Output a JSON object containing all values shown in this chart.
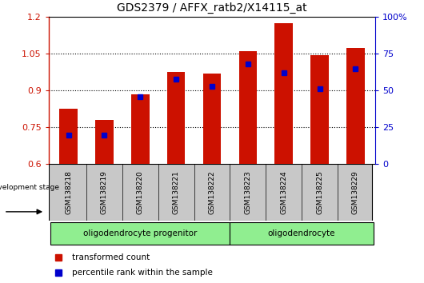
{
  "title": "GDS2379 / AFFX_ratb2/X14115_at",
  "samples": [
    "GSM138218",
    "GSM138219",
    "GSM138220",
    "GSM138221",
    "GSM138222",
    "GSM138223",
    "GSM138224",
    "GSM138225",
    "GSM138229"
  ],
  "transformed_count": [
    0.825,
    0.78,
    0.885,
    0.975,
    0.97,
    1.06,
    1.175,
    1.045,
    1.075
  ],
  "percentile_rank": [
    20,
    20,
    46,
    58,
    53,
    68,
    62,
    51,
    65
  ],
  "progenitor_count": 5,
  "oligo_count": 4,
  "bar_color": "#CC1100",
  "dot_color": "#0000CC",
  "group_color": "#90EE90",
  "ymin": 0.6,
  "ymax": 1.2,
  "yticks_left": [
    0.6,
    0.75,
    0.9,
    1.05,
    1.2
  ],
  "yticks_right_vals": [
    0,
    25,
    50,
    75,
    100
  ],
  "yticks_right_labels": [
    "0",
    "25",
    "50",
    "75",
    "100%"
  ],
  "legend_labels": [
    "transformed count",
    "percentile rank within the sample"
  ],
  "group_labels": [
    "oligodendrocyte progenitor",
    "oligodendrocyte"
  ],
  "dev_stage_label": "development stage",
  "tick_bg": "#c8c8c8",
  "bar_width": 0.5
}
